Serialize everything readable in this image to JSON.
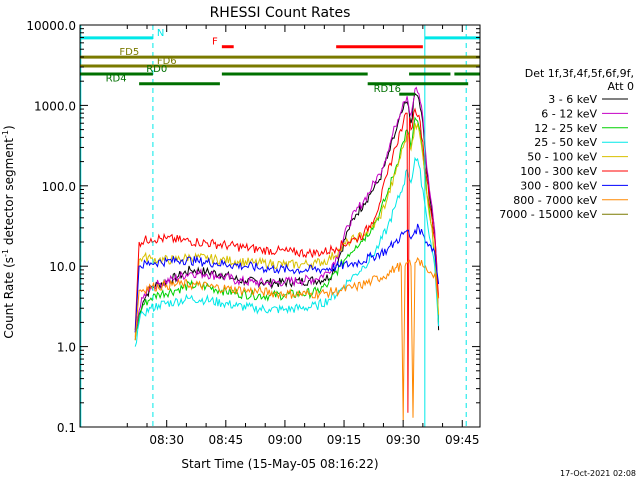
{
  "chart_data": {
    "type": "line",
    "title": "RHESSI Count Rates",
    "xlabel": "Start Time (15-May-05 08:16:22)",
    "ylabel": "Count Rate (s⁻¹ detector segment⁻¹)",
    "ylabel_parts": {
      "main": "Count Rate (s",
      "sup1": "-1",
      "mid": " detector segment",
      "sup2": "-1",
      "end": ")"
    },
    "timestamp": "17-Oct-2021 02:08",
    "xlim_minutes": [
      8.0,
      109.5
    ],
    "x_ticks": [
      {
        "label": "08:30",
        "minutes": 30
      },
      {
        "label": "08:45",
        "minutes": 45
      },
      {
        "label": "09:00",
        "minutes": 60
      },
      {
        "label": "09:15",
        "minutes": 75
      },
      {
        "label": "09:30",
        "minutes": 90
      },
      {
        "label": "09:45",
        "minutes": 105
      }
    ],
    "yscale": "log",
    "ylim": [
      0.1,
      10000
    ],
    "y_ticks": [
      "10000.0",
      "1000.0",
      "100.0",
      "10.0",
      "1.0",
      "0.1"
    ],
    "legend": {
      "header": [
        "Det 1f,3f,4f,5f,6f,9f,",
        "Att 0"
      ],
      "placement": "right"
    },
    "series": [
      {
        "name": "3 - 6 keV",
        "color": "#000000",
        "points": [
          [
            22.0,
            1.5
          ],
          [
            23,
            2.6
          ],
          [
            24,
            3.6
          ],
          [
            25,
            4.5
          ],
          [
            26,
            5.4
          ],
          [
            28,
            6.0
          ],
          [
            30,
            6.5
          ],
          [
            33,
            7.5
          ],
          [
            36,
            9.0
          ],
          [
            40,
            8.5
          ],
          [
            44,
            8.0
          ],
          [
            47,
            7.0
          ],
          [
            50,
            6.5
          ],
          [
            54,
            6.3
          ],
          [
            58,
            6.2
          ],
          [
            62,
            6.4
          ],
          [
            66,
            6.6
          ],
          [
            70,
            6.9
          ],
          [
            72,
            8.0
          ],
          [
            74,
            14
          ],
          [
            76,
            28
          ],
          [
            78,
            44
          ],
          [
            80,
            60
          ],
          [
            82,
            85
          ],
          [
            84,
            120
          ],
          [
            86,
            220
          ],
          [
            88,
            450
          ],
          [
            90,
            900
          ],
          [
            91,
            1100
          ],
          [
            92,
            600
          ],
          [
            93,
            1400
          ],
          [
            94,
            1200
          ],
          [
            95,
            600
          ],
          [
            96,
            150
          ],
          [
            97,
            60
          ],
          [
            98,
            25
          ],
          [
            98.5,
            10
          ],
          [
            99,
            1.6
          ]
        ]
      },
      {
        "name": "6 - 12 keV",
        "color": "#c400c4",
        "points": [
          [
            22.0,
            1.5
          ],
          [
            23,
            2.8
          ],
          [
            24,
            4.0
          ],
          [
            25,
            5.0
          ],
          [
            26,
            5.6
          ],
          [
            28,
            6.0
          ],
          [
            32,
            7.0
          ],
          [
            36,
            8.3
          ],
          [
            40,
            8.0
          ],
          [
            44,
            7.5
          ],
          [
            48,
            6.6
          ],
          [
            52,
            6.3
          ],
          [
            56,
            6.2
          ],
          [
            60,
            6.4
          ],
          [
            64,
            6.6
          ],
          [
            68,
            7.0
          ],
          [
            71,
            8.5
          ],
          [
            74,
            16
          ],
          [
            76,
            32
          ],
          [
            78,
            48
          ],
          [
            80,
            65
          ],
          [
            82,
            95
          ],
          [
            84,
            140
          ],
          [
            86,
            260
          ],
          [
            88,
            550
          ],
          [
            90,
            1100
          ],
          [
            91,
            1300
          ],
          [
            92,
            750
          ],
          [
            93,
            1600
          ],
          [
            94,
            1400
          ],
          [
            95,
            700
          ],
          [
            96,
            170
          ],
          [
            97,
            70
          ],
          [
            98,
            28
          ],
          [
            98.5,
            11
          ],
          [
            99,
            1.8
          ]
        ]
      },
      {
        "name": "12 - 25 keV",
        "color": "#00d000",
        "points": [
          [
            22.0,
            1.2
          ],
          [
            23,
            2.4
          ],
          [
            24,
            3.3
          ],
          [
            26,
            4.0
          ],
          [
            28,
            4.5
          ],
          [
            32,
            5.0
          ],
          [
            36,
            5.8
          ],
          [
            40,
            5.6
          ],
          [
            44,
            5.0
          ],
          [
            48,
            4.6
          ],
          [
            52,
            4.4
          ],
          [
            56,
            4.3
          ],
          [
            60,
            4.4
          ],
          [
            64,
            4.5
          ],
          [
            68,
            4.8
          ],
          [
            71,
            6.0
          ],
          [
            74,
            10
          ],
          [
            76,
            14
          ],
          [
            78,
            18
          ],
          [
            80,
            22
          ],
          [
            82,
            30
          ],
          [
            84,
            45
          ],
          [
            86,
            80
          ],
          [
            88,
            160
          ],
          [
            90,
            350
          ],
          [
            91,
            500
          ],
          [
            92,
            300
          ],
          [
            93,
            700
          ],
          [
            94,
            550
          ],
          [
            95,
            250
          ],
          [
            96,
            80
          ],
          [
            97,
            35
          ],
          [
            98,
            15
          ],
          [
            99,
            2.0
          ]
        ]
      },
      {
        "name": "25 - 50 keV",
        "color": "#00e8e8",
        "points": [
          [
            22.0,
            1.0
          ],
          [
            23,
            2.0
          ],
          [
            24,
            2.6
          ],
          [
            26,
            3.0
          ],
          [
            28,
            3.3
          ],
          [
            32,
            3.6
          ],
          [
            36,
            4.0
          ],
          [
            40,
            3.8
          ],
          [
            44,
            3.5
          ],
          [
            48,
            3.2
          ],
          [
            52,
            3.0
          ],
          [
            56,
            2.9
          ],
          [
            60,
            2.9
          ],
          [
            64,
            3.0
          ],
          [
            68,
            3.2
          ],
          [
            71,
            3.8
          ],
          [
            74,
            5.0
          ],
          [
            76,
            6.5
          ],
          [
            78,
            8.0
          ],
          [
            80,
            10
          ],
          [
            82,
            13
          ],
          [
            84,
            19
          ],
          [
            86,
            30
          ],
          [
            88,
            55
          ],
          [
            90,
            100
          ],
          [
            91,
            160
          ],
          [
            92,
            110
          ],
          [
            93,
            220
          ],
          [
            94,
            180
          ],
          [
            95,
            90
          ],
          [
            96,
            40
          ],
          [
            97,
            20
          ],
          [
            98,
            10
          ],
          [
            99,
            1.8
          ]
        ]
      },
      {
        "name": "50 - 100 keV",
        "color": "#d8c000",
        "points": [
          [
            22.0,
            1.3
          ],
          [
            23,
            12
          ],
          [
            24,
            13
          ],
          [
            26,
            12.5
          ],
          [
            28,
            12
          ],
          [
            32,
            12
          ],
          [
            36,
            13
          ],
          [
            40,
            12.5
          ],
          [
            44,
            12
          ],
          [
            48,
            11.5
          ],
          [
            52,
            11
          ],
          [
            56,
            10.8
          ],
          [
            60,
            10.5
          ],
          [
            64,
            10.5
          ],
          [
            68,
            11
          ],
          [
            71,
            12
          ],
          [
            74,
            16
          ],
          [
            76,
            20
          ],
          [
            78,
            22
          ],
          [
            80,
            25
          ],
          [
            82,
            30
          ],
          [
            84,
            40
          ],
          [
            86,
            70
          ],
          [
            88,
            140
          ],
          [
            90,
            300
          ],
          [
            91,
            450
          ],
          [
            92,
            280
          ],
          [
            93,
            600
          ],
          [
            94,
            500
          ],
          [
            95,
            230
          ],
          [
            96,
            80
          ],
          [
            97,
            35
          ],
          [
            98,
            15
          ],
          [
            99,
            2.5
          ]
        ]
      },
      {
        "name": "100 - 300 keV",
        "color": "#ff0000",
        "points": [
          [
            22.0,
            1.6
          ],
          [
            23,
            20
          ],
          [
            26,
            22
          ],
          [
            30,
            22
          ],
          [
            34,
            21
          ],
          [
            38,
            20
          ],
          [
            42,
            19
          ],
          [
            46,
            18
          ],
          [
            50,
            17
          ],
          [
            54,
            16
          ],
          [
            58,
            15.5
          ],
          [
            62,
            15
          ],
          [
            66,
            14.5
          ],
          [
            70,
            15
          ],
          [
            73,
            17
          ],
          [
            76,
            20
          ],
          [
            78,
            22
          ],
          [
            80,
            25
          ],
          [
            82,
            35
          ],
          [
            84,
            60
          ],
          [
            86,
            140
          ],
          [
            88,
            300
          ],
          [
            90,
            600
          ],
          [
            91,
            800
          ],
          [
            91.2,
            0.15
          ],
          [
            91.6,
            700
          ],
          [
            92,
            500
          ],
          [
            93,
            900
          ],
          [
            94,
            750
          ],
          [
            95,
            350
          ],
          [
            96,
            120
          ],
          [
            97,
            50
          ],
          [
            98,
            22
          ],
          [
            99,
            4.0
          ]
        ]
      },
      {
        "name": "300 - 800 keV",
        "color": "#0000ff",
        "points": [
          [
            22.0,
            1.5
          ],
          [
            23,
            10
          ],
          [
            26,
            11
          ],
          [
            30,
            11.5
          ],
          [
            34,
            12
          ],
          [
            38,
            11.5
          ],
          [
            42,
            11
          ],
          [
            46,
            10.5
          ],
          [
            50,
            10
          ],
          [
            54,
            9.5
          ],
          [
            58,
            9.2
          ],
          [
            62,
            9.0
          ],
          [
            66,
            9.0
          ],
          [
            70,
            9.2
          ],
          [
            74,
            10
          ],
          [
            78,
            11
          ],
          [
            82,
            13
          ],
          [
            86,
            16
          ],
          [
            88,
            20
          ],
          [
            90,
            25
          ],
          [
            91,
            28
          ],
          [
            92,
            22
          ],
          [
            93,
            28
          ],
          [
            94,
            30
          ],
          [
            95,
            25
          ],
          [
            96,
            20
          ],
          [
            97,
            18
          ],
          [
            98,
            15
          ],
          [
            99,
            6.0
          ]
        ]
      },
      {
        "name": "800 - 7000 keV",
        "color": "#ff8800",
        "points": [
          [
            22.0,
            1.2
          ],
          [
            23,
            5.0
          ],
          [
            26,
            5.5
          ],
          [
            30,
            5.8
          ],
          [
            34,
            6.0
          ],
          [
            38,
            5.8
          ],
          [
            42,
            5.5
          ],
          [
            46,
            5.2
          ],
          [
            50,
            5.0
          ],
          [
            54,
            4.8
          ],
          [
            58,
            4.6
          ],
          [
            62,
            4.5
          ],
          [
            66,
            4.5
          ],
          [
            70,
            4.6
          ],
          [
            74,
            5.0
          ],
          [
            78,
            5.5
          ],
          [
            82,
            6.5
          ],
          [
            86,
            8.0
          ],
          [
            88,
            9.5
          ],
          [
            89.5,
            10
          ],
          [
            90,
            0.12
          ],
          [
            90.5,
            10
          ],
          [
            91,
            11
          ],
          [
            92,
            10
          ],
          [
            92.5,
            0.13
          ],
          [
            93,
            11
          ],
          [
            94,
            12
          ],
          [
            95,
            10
          ],
          [
            96,
            9.0
          ],
          [
            97,
            8.5
          ],
          [
            98,
            8.0
          ],
          [
            99,
            4.0
          ]
        ]
      },
      {
        "name": "7000 - 15000 keV",
        "color": "#7a7a00",
        "points": []
      }
    ],
    "vertical_lines": [
      {
        "minutes": 8.2,
        "style": "solid",
        "color": "#00e8e8"
      },
      {
        "minutes": 26.5,
        "style": "dashed",
        "color": "#00e8e8"
      },
      {
        "minutes": 95.5,
        "style": "solid",
        "color": "#00e8e8"
      },
      {
        "minutes": 106.0,
        "style": "dashed",
        "color": "#00e8e8"
      }
    ],
    "flag_bars": [
      {
        "label": "N",
        "color": "#00e8e8",
        "logy": 3.84,
        "segments": [
          [
            8.0,
            26.5
          ],
          [
            95.5,
            109.5
          ]
        ],
        "label_at": 27.5
      },
      {
        "label": "F",
        "color": "#ff0000",
        "logy": 3.73,
        "segments": [
          [
            44.0,
            47.0
          ],
          [
            73.0,
            95.0
          ]
        ],
        "label_at": 41.5
      },
      {
        "label": "FD5",
        "color": "#7a7a00",
        "logy": 3.6,
        "segments": [
          [
            8.0,
            109.5
          ]
        ],
        "label_at": 18.0
      },
      {
        "label": "FD6",
        "color": "#7a7a00",
        "logy": 3.49,
        "segments": [
          [
            8.0,
            109.5
          ]
        ],
        "label_at": 27.5
      },
      {
        "label": "RD0",
        "color": "#007000",
        "logy": 3.39,
        "segments": [
          [
            8.0,
            26.5
          ],
          [
            44.0,
            81.0
          ],
          [
            91.5,
            102.0
          ],
          [
            103.0,
            109.5
          ]
        ],
        "label_at": 24.8
      },
      {
        "label": "RD4",
        "color": "#007000",
        "logy": 3.27,
        "segments": [
          [
            23.0,
            43.5
          ],
          [
            81.0,
            106.5
          ]
        ],
        "label_at": 14.5
      },
      {
        "label": "RD16",
        "color": "#007000",
        "logy": 3.14,
        "segments": [
          [
            89.0,
            93.0
          ]
        ],
        "label_at": 82.5
      }
    ]
  }
}
